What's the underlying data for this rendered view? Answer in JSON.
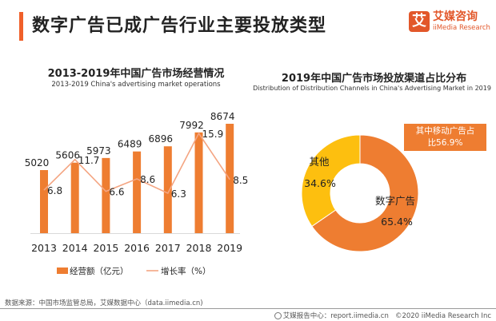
{
  "header": {
    "title": "数字广告已成广告行业主要投放类型",
    "accent_color": "#f0602a"
  },
  "logo": {
    "mark": "艾",
    "name_cn": "艾媒咨询",
    "name_en": "iiMedia Research",
    "color": "#e2572a"
  },
  "chart_data": [
    {
      "type": "bar",
      "title": "2013-2019年中国广告市场经营情况",
      "subtitle": "2013-2019 China's advertising market operations",
      "categories": [
        "2013",
        "2014",
        "2015",
        "2016",
        "2017",
        "2018",
        "2019"
      ],
      "series": [
        {
          "name": "经营额（亿元）",
          "kind": "bar",
          "color": "#ee7d31",
          "values": [
            5020,
            5606,
            5973,
            6489,
            6896,
            7992,
            8674
          ]
        },
        {
          "name": "增长率（%）",
          "kind": "line",
          "color": "#f4a582",
          "values": [
            6.8,
            11.7,
            6.6,
            8.6,
            6.3,
            15.9,
            8.5
          ]
        }
      ],
      "xlabel": "",
      "ylabel": "",
      "ylim_bar": [
        0,
        11000
      ],
      "ylim_line": [
        -10,
        20
      ],
      "grid": false,
      "legend": "bottom"
    },
    {
      "type": "pie",
      "variant": "donut",
      "title": "2019年中国广告市场投放渠道占比分布",
      "subtitle": "Distribution of Distribution Channels in China's Advertising Market in 2019",
      "slices": [
        {
          "label": "数字广告",
          "value": 65.4,
          "display": "65.4%",
          "color": "#ee7d31"
        },
        {
          "label": "其他",
          "value": 34.6,
          "display": "34.6%",
          "color": "#fdbf0f"
        }
      ],
      "annotation": {
        "line1": "其中移动广告占",
        "line2": "比56.9%"
      }
    }
  ],
  "footer": {
    "source": "数据来源：中国市场监管总局，艾媒数据中心（data.iimedia.cn)",
    "report_center": "艾媒报告中心：report.iimedia.cn",
    "copyright": "©2020  iiMedia Research  Inc"
  }
}
